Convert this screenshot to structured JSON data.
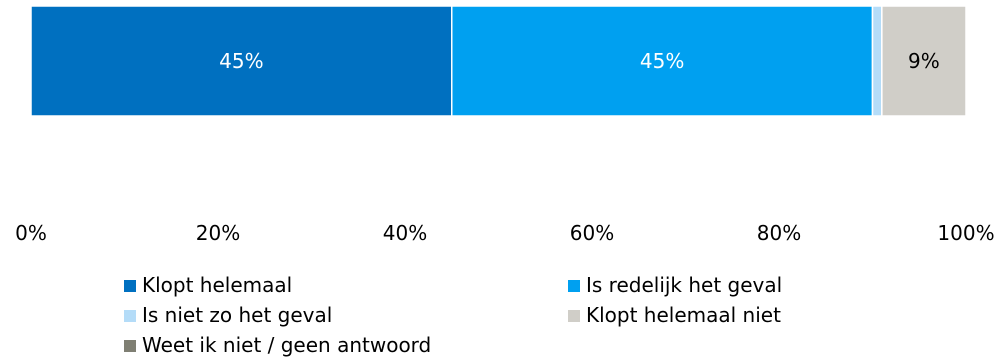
{
  "chart_data": {
    "type": "bar",
    "orientation": "horizontal",
    "stacked": true,
    "percent": true,
    "categories": [
      ""
    ],
    "series": [
      {
        "name": "Klopt helemaal",
        "values": [
          45
        ],
        "label": "45%",
        "color": "#0070C0",
        "label_color": "#ffffff"
      },
      {
        "name": "Is redelijk het geval",
        "values": [
          45
        ],
        "label": "45%",
        "color": "#00A0F0",
        "label_color": "#ffffff"
      },
      {
        "name": "Is niet zo het geval",
        "values": [
          1
        ],
        "label": "",
        "color": "#B4DCF8",
        "label_color": "#000000"
      },
      {
        "name": "Klopt helemaal niet",
        "values": [
          9
        ],
        "label": "9%",
        "color": "#D0CEC8",
        "label_color": "#000000"
      },
      {
        "name": "Weet ik niet / geen antwoord",
        "values": [
          0
        ],
        "label": "",
        "color": "#7F7F73",
        "label_color": "#000000"
      }
    ],
    "x_ticks": [
      "0%",
      "20%",
      "40%",
      "60%",
      "80%",
      "100%"
    ],
    "xlim": [
      0,
      100
    ],
    "title": "",
    "xlabel": "",
    "ylabel": "",
    "grid": false,
    "legend_position": "bottom"
  }
}
